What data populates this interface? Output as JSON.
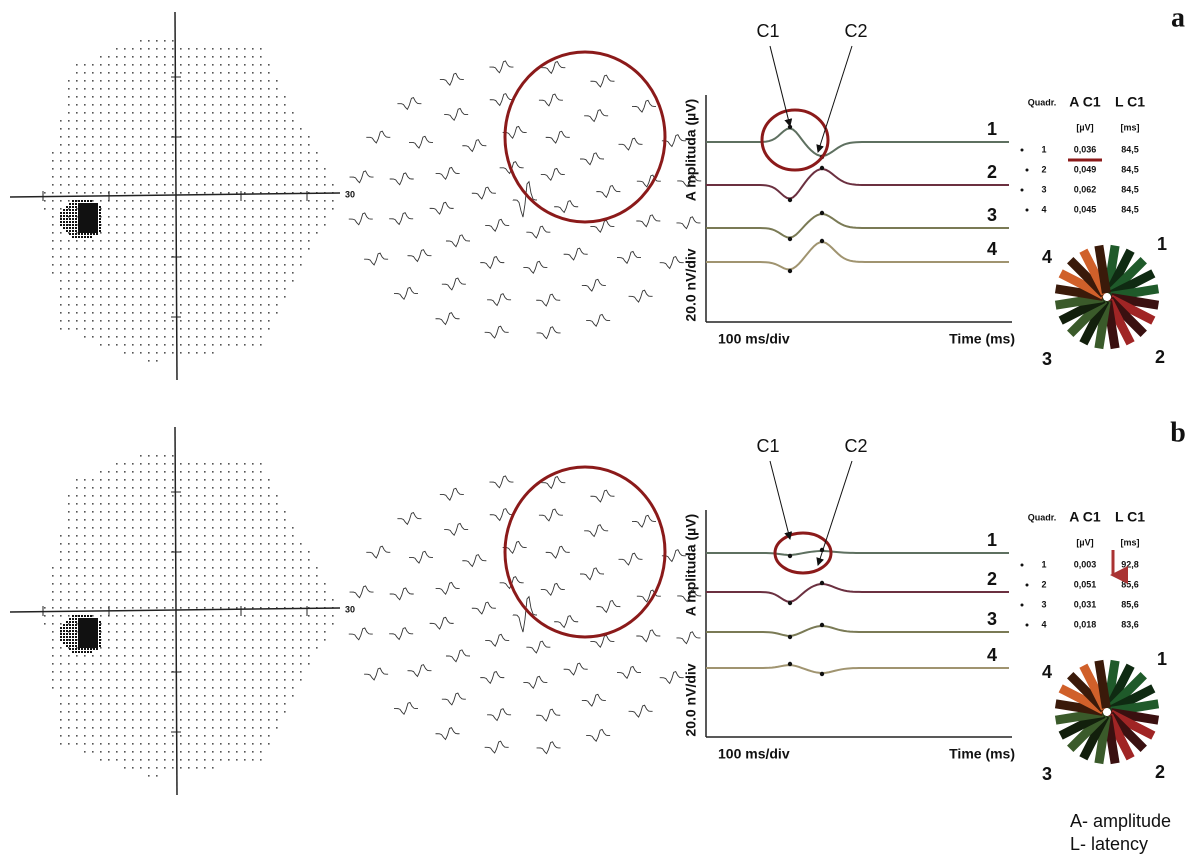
{
  "panels": [
    {
      "label": "a",
      "field_scale": "30",
      "annotations": [
        "C1",
        "C2"
      ],
      "y_axis_label": "A mplituda (µV)",
      "y_scale": "20.0 nV/div",
      "x_scale": "100 ms/div",
      "x_axis_label": "Time (ms)",
      "traces": [
        "1",
        "2",
        "3",
        "4"
      ],
      "table": {
        "headers": [
          "Quadr.",
          "A C1",
          "L C1"
        ],
        "units": [
          "[µV]",
          "[ms]"
        ],
        "rows": [
          [
            "1",
            "0,036",
            "84,5"
          ],
          [
            "2",
            "0,049",
            "84,5"
          ],
          [
            "3",
            "0,062",
            "84,5"
          ],
          [
            "4",
            "0,045",
            "84,5"
          ]
        ]
      },
      "quadrants": [
        "4",
        "1",
        "3",
        "2"
      ]
    },
    {
      "label": "b",
      "field_scale": "30",
      "annotations": [
        "C1",
        "C2"
      ],
      "y_axis_label": "A mplituda (µV)",
      "y_scale": "20.0 nV/div",
      "x_scale": "100 ms/div",
      "x_axis_label": "Time (ms)",
      "traces": [
        "1",
        "2",
        "3",
        "4"
      ],
      "table": {
        "headers": [
          "Quadr.",
          "A C1",
          "L C1"
        ],
        "units": [
          "[µV]",
          "[ms]"
        ],
        "rows": [
          [
            "1",
            "0,003",
            "92,8"
          ],
          [
            "2",
            "0,051",
            "85,6"
          ],
          [
            "3",
            "0,031",
            "85,6"
          ],
          [
            "4",
            "0,018",
            "83,6"
          ]
        ]
      },
      "quadrants": [
        "4",
        "1",
        "3",
        "2"
      ]
    }
  ],
  "legend": [
    "A- amplitude",
    "L- latency"
  ]
}
